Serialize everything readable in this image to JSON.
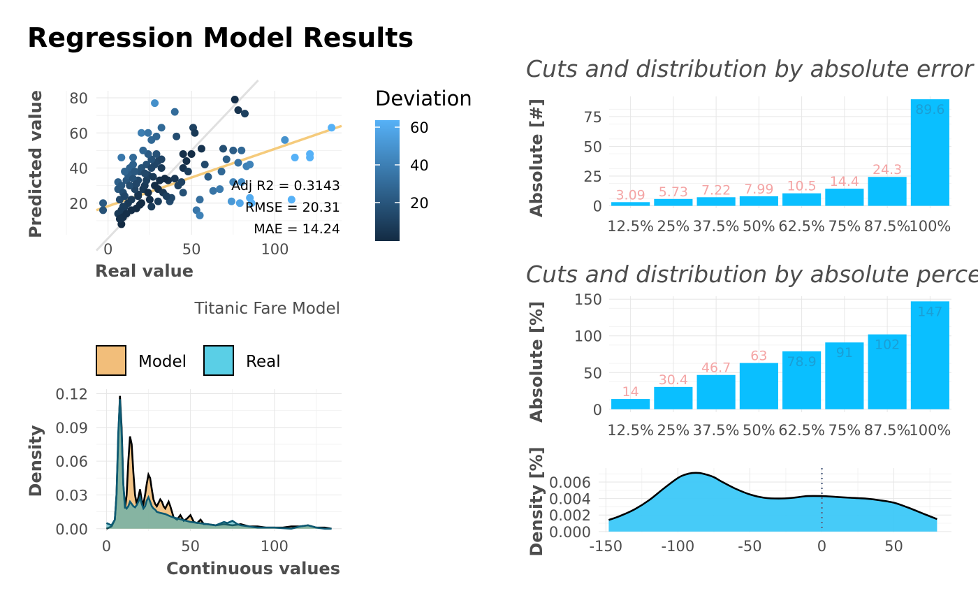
{
  "page": {
    "title": "Regression Model Results"
  },
  "colors": {
    "bar": "#0abfff",
    "label_pink": "#f4a5a5",
    "label_blue": "#1a9fd6",
    "fit_line": "#f5c66e",
    "model_fill": "#f2be7a",
    "real_fill": "#5acfe6",
    "density_fill": "#3cc8f8",
    "dev_low": "#132b43",
    "dev_high": "#56b1f7"
  },
  "scatter": {
    "xlabel": "Real value",
    "ylabel": "Predicted value",
    "caption": "Titanic Fare Model",
    "legend_title": "Deviation",
    "legend_ticks": [
      "20",
      "40",
      "60"
    ],
    "stats": [
      "Adj R2 =  0.3143",
      "RMSE = 20.31",
      "MAE = 14.24"
    ]
  },
  "density": {
    "xlabel": "Continuous values",
    "ylabel": "Density",
    "legend": [
      "Model",
      "Real"
    ]
  },
  "chart_data": [
    {
      "id": "scatter",
      "type": "scatter",
      "title": "",
      "xlabel": "Real value",
      "ylabel": "Predicted value",
      "xlim": [
        -7,
        140
      ],
      "ylim": [
        2,
        84
      ],
      "xticks": [
        0,
        50,
        100
      ],
      "yticks": [
        20,
        40,
        60,
        80
      ],
      "points": [
        [
          28,
          77
        ],
        [
          40,
          72
        ],
        [
          76,
          79
        ],
        [
          78,
          73
        ],
        [
          82,
          71
        ],
        [
          51,
          63
        ],
        [
          32,
          63
        ],
        [
          52,
          60
        ],
        [
          20,
          60
        ],
        [
          24,
          60
        ],
        [
          26,
          56
        ],
        [
          29,
          58
        ],
        [
          41,
          58
        ],
        [
          56,
          51
        ],
        [
          45,
          48
        ],
        [
          50,
          48
        ],
        [
          69,
          51
        ],
        [
          75,
          50
        ],
        [
          80,
          50
        ],
        [
          106,
          56
        ],
        [
          121,
          48
        ],
        [
          121,
          46
        ],
        [
          112,
          46
        ],
        [
          134,
          63
        ],
        [
          83,
          41
        ],
        [
          78,
          43
        ],
        [
          71,
          45
        ],
        [
          85,
          42
        ],
        [
          68,
          38
        ],
        [
          75,
          32
        ],
        [
          80,
          32
        ],
        [
          85,
          23
        ],
        [
          74,
          21
        ],
        [
          79,
          20
        ],
        [
          86,
          20
        ],
        [
          110,
          22
        ],
        [
          55,
          22
        ],
        [
          53,
          16
        ],
        [
          55,
          13
        ],
        [
          30,
          21
        ],
        [
          37,
          21
        ],
        [
          38,
          23
        ],
        [
          44,
          32
        ],
        [
          45,
          26
        ],
        [
          42,
          30
        ],
        [
          36,
          33
        ],
        [
          40,
          34
        ],
        [
          34,
          34
        ],
        [
          32,
          40
        ],
        [
          28,
          42
        ],
        [
          30,
          44
        ],
        [
          26,
          45
        ],
        [
          24,
          48
        ],
        [
          8,
          46
        ],
        [
          15,
          46
        ],
        [
          13,
          40
        ],
        [
          14,
          36
        ],
        [
          18,
          33
        ],
        [
          19,
          38
        ],
        [
          20,
          40
        ],
        [
          21,
          28
        ],
        [
          22,
          30
        ],
        [
          23,
          33
        ],
        [
          24,
          26
        ],
        [
          25,
          22
        ],
        [
          26,
          18
        ],
        [
          20,
          20
        ],
        [
          18,
          25
        ],
        [
          16,
          28
        ],
        [
          14,
          22
        ],
        [
          12,
          20
        ],
        [
          10,
          18
        ],
        [
          8,
          16
        ],
        [
          6,
          14
        ],
        [
          7,
          22
        ],
        [
          6,
          28
        ],
        [
          6,
          32
        ],
        [
          8,
          30
        ],
        [
          9,
          26
        ],
        [
          10,
          24
        ],
        [
          11,
          33
        ],
        [
          12,
          36
        ],
        [
          13,
          30
        ],
        [
          15,
          34
        ],
        [
          16,
          38
        ],
        [
          17,
          31
        ],
        [
          18,
          24
        ],
        [
          19,
          19
        ],
        [
          17,
          17
        ],
        [
          14,
          16
        ],
        [
          11,
          14
        ],
        [
          9,
          12
        ],
        [
          8,
          8
        ],
        [
          7,
          11
        ],
        [
          -3,
          16
        ],
        [
          -3,
          20
        ],
        [
          9,
          18
        ],
        [
          10,
          38
        ],
        [
          15,
          42
        ],
        [
          21,
          50
        ],
        [
          24,
          36
        ],
        [
          27,
          35
        ],
        [
          28,
          30
        ],
        [
          30,
          28
        ],
        [
          31,
          33
        ],
        [
          33,
          26
        ],
        [
          35,
          24
        ],
        [
          45,
          40
        ],
        [
          47,
          44
        ],
        [
          48,
          38
        ],
        [
          58,
          42
        ],
        [
          63,
          27
        ],
        [
          67,
          28
        ],
        [
          60,
          35
        ],
        [
          22,
          37
        ],
        [
          23,
          42
        ],
        [
          26,
          40
        ],
        [
          29,
          48
        ],
        [
          32,
          45
        ]
      ],
      "deviation": {
        "min": 1,
        "max": 65
      },
      "fit_line": [
        [
          -7,
          16
        ],
        [
          140,
          64
        ]
      ],
      "identity_line": [
        [
          -7,
          -7
        ],
        [
          90,
          90
        ]
      ]
    },
    {
      "id": "density",
      "type": "area",
      "title": "",
      "xlabel": "Continuous values",
      "ylabel": "Density",
      "xlim": [
        -6,
        140
      ],
      "ylim": [
        -0.002,
        0.124
      ],
      "xticks": [
        0,
        50,
        100
      ],
      "yticks": [
        0.0,
        0.03,
        0.06,
        0.09,
        0.12
      ],
      "ytick_labels": [
        "0.00",
        "0.03",
        "0.06",
        "0.09",
        "0.12"
      ],
      "series": [
        {
          "name": "Model",
          "x": [
            0,
            3,
            5,
            6,
            7,
            8,
            9,
            10,
            11,
            12,
            13,
            14,
            15,
            16,
            17,
            18,
            19,
            20,
            21,
            22,
            23,
            24,
            25,
            26,
            27,
            28,
            29,
            30,
            31,
            32,
            33,
            34,
            35,
            36,
            37,
            38,
            40,
            42,
            44,
            46,
            48,
            50,
            52,
            54,
            56,
            58,
            60,
            65,
            70,
            75,
            80,
            85,
            90,
            95,
            100,
            105,
            110,
            115,
            120,
            125,
            130,
            134
          ],
          "y": [
            0.0,
            0.002,
            0.008,
            0.03,
            0.08,
            0.118,
            0.09,
            0.04,
            0.018,
            0.03,
            0.06,
            0.082,
            0.075,
            0.05,
            0.03,
            0.022,
            0.028,
            0.035,
            0.025,
            0.022,
            0.03,
            0.04,
            0.048,
            0.045,
            0.035,
            0.026,
            0.022,
            0.02,
            0.023,
            0.026,
            0.024,
            0.02,
            0.018,
            0.021,
            0.024,
            0.02,
            0.01,
            0.008,
            0.012,
            0.007,
            0.009,
            0.012,
            0.006,
            0.005,
            0.008,
            0.004,
            0.004,
            0.003,
            0.004,
            0.003,
            0.004,
            0.002,
            0.002,
            0.001,
            0.001,
            0.001,
            0.002,
            0.002,
            0.003,
            0.001,
            0.001,
            0.0
          ]
        },
        {
          "name": "Real",
          "x": [
            0,
            3,
            5,
            6,
            7,
            8,
            9,
            10,
            11,
            12,
            13,
            14,
            15,
            16,
            17,
            18,
            19,
            20,
            21,
            22,
            23,
            24,
            25,
            26,
            27,
            28,
            29,
            30,
            32,
            35,
            38,
            40,
            45,
            50,
            55,
            60,
            65,
            70,
            72,
            75,
            78,
            80,
            85,
            90,
            100,
            110,
            115,
            120,
            125,
            130,
            134
          ],
          "y": [
            0.005,
            0.003,
            0.008,
            0.03,
            0.085,
            0.115,
            0.085,
            0.04,
            0.02,
            0.018,
            0.02,
            0.024,
            0.022,
            0.02,
            0.019,
            0.021,
            0.024,
            0.028,
            0.022,
            0.018,
            0.02,
            0.025,
            0.028,
            0.024,
            0.02,
            0.018,
            0.017,
            0.015,
            0.014,
            0.013,
            0.011,
            0.01,
            0.008,
            0.006,
            0.005,
            0.004,
            0.003,
            0.006,
            0.005,
            0.007,
            0.004,
            0.003,
            0.002,
            0.001,
            0.001,
            0.0,
            0.002,
            0.003,
            0.001,
            0.0,
            0.0
          ]
        }
      ]
    },
    {
      "id": "abs_error",
      "type": "bar",
      "title": "Cuts and distribution by absolute error",
      "xlabel": "",
      "ylabel": "Absolute [#]",
      "categories": [
        "12.5%",
        "25%",
        "37.5%",
        "50%",
        "62.5%",
        "75%",
        "87.5%",
        "100%"
      ],
      "values": [
        3.09,
        5.73,
        7.22,
        7.99,
        10.5,
        14.4,
        24.3,
        89.6
      ],
      "labels": [
        "3.09",
        "5.73",
        "7.22",
        "7.99",
        "10.5",
        "14.4",
        "24.3",
        "89.6"
      ],
      "ylim": [
        -2,
        92
      ],
      "yticks": [
        0,
        25,
        50,
        75
      ]
    },
    {
      "id": "abs_pct",
      "type": "bar",
      "title": "Cuts and distribution by absolute percentage",
      "xlabel": "",
      "ylabel": "Absolute [%]",
      "categories": [
        "12.5%",
        "25%",
        "37.5%",
        "50%",
        "62.5%",
        "75%",
        "87.5%",
        "100%"
      ],
      "values": [
        14,
        30.4,
        46.7,
        63,
        78.9,
        91,
        102,
        147
      ],
      "labels": [
        "14",
        "30.4",
        "46.7",
        "63",
        "78.9",
        "91",
        "102",
        "147"
      ],
      "ylim": [
        -4,
        154
      ],
      "yticks": [
        0,
        50,
        100,
        150
      ]
    },
    {
      "id": "err_density",
      "type": "area",
      "title": "",
      "xlabel": "",
      "ylabel": "Density [%]",
      "xlim": [
        -155,
        90
      ],
      "ylim": [
        -0.0001,
        0.0077
      ],
      "xticks": [
        -150,
        -100,
        -50,
        0,
        50
      ],
      "yticks": [
        0.0,
        0.002,
        0.004,
        0.006
      ],
      "ytick_labels": [
        "0.000",
        "0.002",
        "0.004",
        "0.006"
      ],
      "series": [
        {
          "name": "",
          "x": [
            -148,
            -140,
            -130,
            -120,
            -110,
            -100,
            -95,
            -90,
            -85,
            -80,
            -75,
            -70,
            -60,
            -50,
            -40,
            -30,
            -20,
            -10,
            0,
            10,
            20,
            30,
            40,
            50,
            60,
            70,
            80
          ],
          "y": [
            0.0014,
            0.0019,
            0.0027,
            0.0038,
            0.0052,
            0.0065,
            0.0069,
            0.0071,
            0.0071,
            0.0069,
            0.0066,
            0.0061,
            0.0052,
            0.0045,
            0.0041,
            0.004,
            0.0041,
            0.0043,
            0.0043,
            0.0042,
            0.0041,
            0.004,
            0.0038,
            0.0035,
            0.0029,
            0.0022,
            0.0015
          ]
        }
      ],
      "vline": 0
    }
  ]
}
